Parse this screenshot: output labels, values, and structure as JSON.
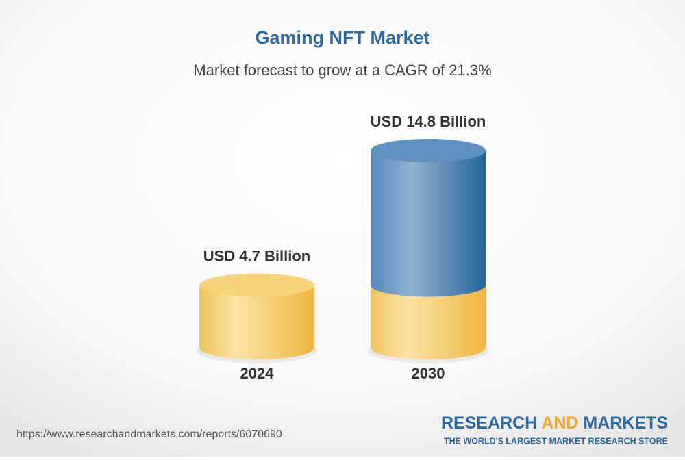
{
  "chart_data": {
    "type": "cylinder",
    "title": "Gaming NFT Market",
    "subtitle": "Market forecast to grow at a CAGR of 21.3%",
    "categories": [
      "2024",
      "2030"
    ],
    "values": [
      4.7,
      14.8
    ],
    "value_labels": [
      "USD 4.7 Billion",
      "USD 14.8 Billion"
    ],
    "colors": {
      "base": "#f2c35a",
      "growth": "#4a80b4"
    }
  },
  "footer": {
    "url": "https://www.researchandmarkets.com/reports/6070690",
    "logo": {
      "research": "RESEARCH",
      "and": "AND",
      "markets": "MARKETS",
      "tagline": "THE WORLD'S LARGEST MARKET RESEARCH STORE"
    }
  }
}
